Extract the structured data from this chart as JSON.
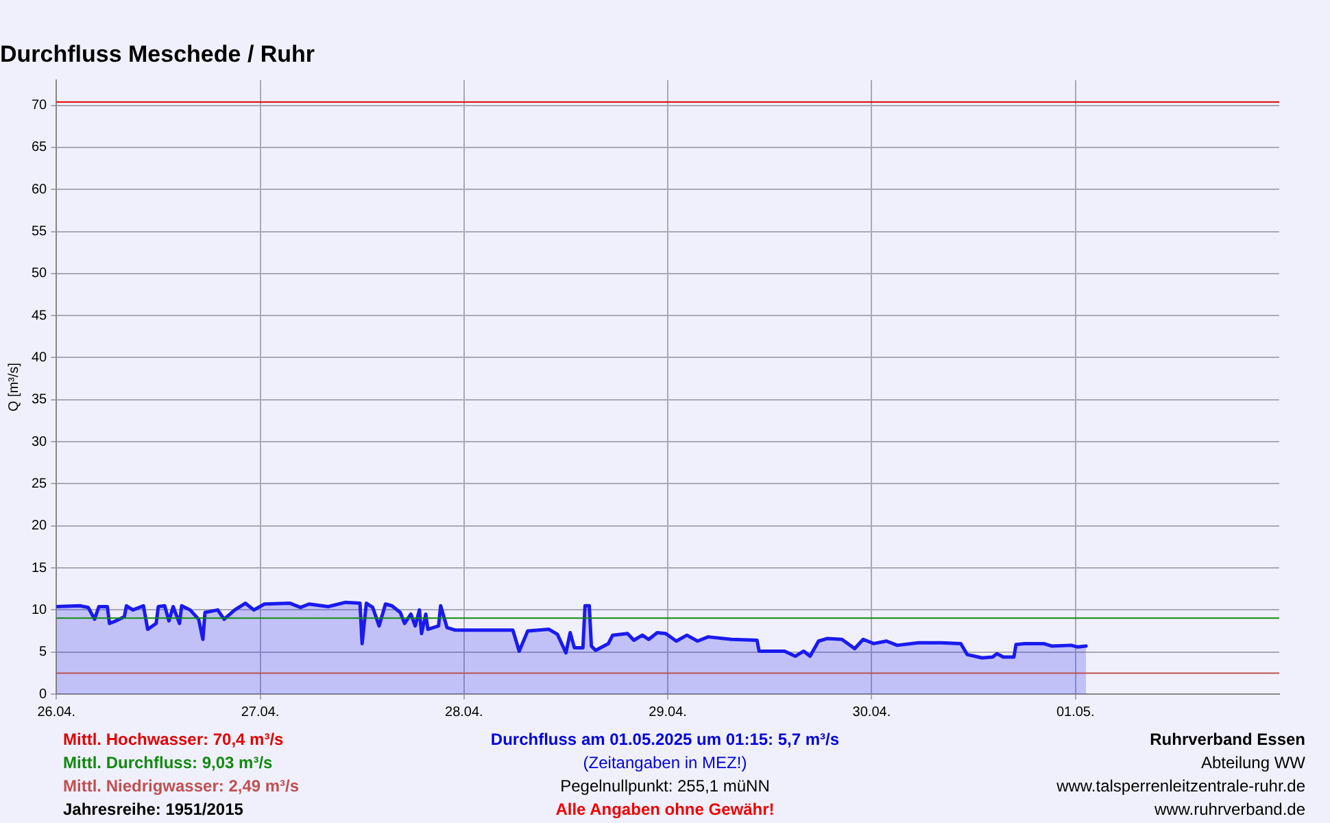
{
  "chart_data": {
    "type": "area",
    "title": "Durchfluss Meschede / Ruhr",
    "ylabel": "Q [m³/s]",
    "x": [
      "2025-04-26T00:00",
      "2025-04-26T02:45",
      "2025-04-26T03:45",
      "2025-04-26T04:30",
      "2025-04-26T05:00",
      "2025-04-26T06:00",
      "2025-04-26T06:15",
      "2025-04-26T07:00",
      "2025-04-26T08:00",
      "2025-04-26T08:15",
      "2025-04-26T09:00",
      "2025-04-26T10:15",
      "2025-04-26T10:45",
      "2025-04-26T11:45",
      "2025-04-26T12:00",
      "2025-04-26T12:45",
      "2025-04-26T13:15",
      "2025-04-26T13:45",
      "2025-04-26T14:30",
      "2025-04-26T14:45",
      "2025-04-26T15:45",
      "2025-04-26T16:45",
      "2025-04-26T17:15",
      "2025-04-26T17:30",
      "2025-04-26T19:00",
      "2025-04-26T19:45",
      "2025-04-26T21:00",
      "2025-04-26T22:15",
      "2025-04-26T23:15",
      "2025-04-27T00:30",
      "2025-04-27T03:30",
      "2025-04-27T04:45",
      "2025-04-27T05:45",
      "2025-04-27T08:00",
      "2025-04-27T10:00",
      "2025-04-27T11:45",
      "2025-04-27T12:00",
      "2025-04-27T12:30",
      "2025-04-27T13:15",
      "2025-04-27T14:00",
      "2025-04-27T14:45",
      "2025-04-27T15:30",
      "2025-04-27T16:30",
      "2025-04-27T17:00",
      "2025-04-27T17:45",
      "2025-04-27T18:15",
      "2025-04-27T18:45",
      "2025-04-27T19:00",
      "2025-04-27T19:30",
      "2025-04-27T19:45",
      "2025-04-27T21:00",
      "2025-04-27T21:15",
      "2025-04-27T22:00",
      "2025-04-27T23:00",
      "2025-04-28T00:00",
      "2025-04-28T03:45",
      "2025-04-28T05:45",
      "2025-04-28T06:30",
      "2025-04-28T07:30",
      "2025-04-28T10:00",
      "2025-04-28T11:00",
      "2025-04-28T12:00",
      "2025-04-28T12:30",
      "2025-04-28T13:00",
      "2025-04-28T14:00",
      "2025-04-28T14:15",
      "2025-04-28T14:45",
      "2025-04-28T15:00",
      "2025-04-28T15:30",
      "2025-04-28T17:00",
      "2025-04-28T17:30",
      "2025-04-28T19:15",
      "2025-04-28T20:00",
      "2025-04-28T21:00",
      "2025-04-28T21:45",
      "2025-04-28T22:45",
      "2025-04-28T23:45",
      "2025-04-29T01:00",
      "2025-04-29T02:15",
      "2025-04-29T03:30",
      "2025-04-29T04:45",
      "2025-04-29T07:30",
      "2025-04-29T10:30",
      "2025-04-29T10:45",
      "2025-04-29T13:45",
      "2025-04-29T15:00",
      "2025-04-29T16:00",
      "2025-04-29T16:45",
      "2025-04-29T17:45",
      "2025-04-29T18:45",
      "2025-04-29T20:30",
      "2025-04-29T22:00",
      "2025-04-29T23:00",
      "2025-04-30T00:15",
      "2025-04-30T01:45",
      "2025-04-30T03:00",
      "2025-04-30T05:30",
      "2025-04-30T08:15",
      "2025-04-30T10:30",
      "2025-04-30T11:15",
      "2025-04-30T13:00",
      "2025-04-30T14:15",
      "2025-04-30T14:45",
      "2025-04-30T15:30",
      "2025-04-30T16:45",
      "2025-04-30T17:00",
      "2025-04-30T18:00",
      "2025-04-30T20:15",
      "2025-04-30T21:15",
      "2025-04-30T23:30",
      "2025-05-01T00:15",
      "2025-05-01T01:15"
    ],
    "series": [
      {
        "color": "#1a1aee",
        "values": [
          10.4,
          10.5,
          10.3,
          8.9,
          10.4,
          10.4,
          8.4,
          8.7,
          9.2,
          10.5,
          10.0,
          10.5,
          7.7,
          8.4,
          10.4,
          10.5,
          8.7,
          10.4,
          8.4,
          10.5,
          10.0,
          8.9,
          6.5,
          9.7,
          10.0,
          8.9,
          10.0,
          10.8,
          10.0,
          10.7,
          10.8,
          10.3,
          10.7,
          10.4,
          10.9,
          10.8,
          6.0,
          10.8,
          10.3,
          8.1,
          10.7,
          10.5,
          9.7,
          8.4,
          9.5,
          8.1,
          10.0,
          7.2,
          9.5,
          7.7,
          8.1,
          10.5,
          7.9,
          7.6,
          7.6,
          7.6,
          7.6,
          5.1,
          7.5,
          7.7,
          7.1,
          4.9,
          7.3,
          5.5,
          5.5,
          10.5,
          10.5,
          5.7,
          5.2,
          6.0,
          7.0,
          7.2,
          6.4,
          7.0,
          6.5,
          7.3,
          7.2,
          6.3,
          7.0,
          6.3,
          6.8,
          6.5,
          6.4,
          5.1,
          5.1,
          4.5,
          5.1,
          4.5,
          6.3,
          6.6,
          6.5,
          5.4,
          6.5,
          6.0,
          6.3,
          5.8,
          6.1,
          6.1,
          6.0,
          4.7,
          4.3,
          4.4,
          4.8,
          4.4,
          4.4,
          5.9,
          6.0,
          6.0,
          5.7,
          5.8,
          5.6,
          5.7
        ]
      }
    ],
    "xlim": [
      "2025-04-26T00:00",
      "2025-05-02T00:00"
    ],
    "xticks": [
      {
        "value": "2025-04-26T00:00",
        "label": "26.04."
      },
      {
        "value": "2025-04-27T00:00",
        "label": "27.04."
      },
      {
        "value": "2025-04-28T00:00",
        "label": "28.04."
      },
      {
        "value": "2025-04-29T00:00",
        "label": "29.04."
      },
      {
        "value": "2025-04-30T00:00",
        "label": "30.04."
      },
      {
        "value": "2025-05-01T00:00",
        "label": "01.05."
      }
    ],
    "ylim": [
      0,
      73
    ],
    "yticks": [
      0,
      5,
      10,
      15,
      20,
      25,
      30,
      35,
      40,
      45,
      50,
      55,
      60,
      65,
      70
    ],
    "grid": true,
    "legend": false,
    "ref_lines": [
      {
        "axis": "y",
        "value": 70.4,
        "label": "Mittl. Hochwasser: 70,4 m³/s",
        "color": "#e00000"
      },
      {
        "axis": "y",
        "value": 9.03,
        "label": "Mittl. Durchfluss: 9,03 m³/s",
        "color": "#108a10"
      },
      {
        "axis": "y",
        "value": 2.49,
        "label": "Mittl. Niedrigwasser: 2,49 m³/s",
        "color": "#c05050"
      }
    ],
    "annotations": [
      "Jahresreihe: 1951/2015",
      "Durchfluss am 01.05.2025 um 01:15: 5,7 m³/s",
      "(Zeitangaben in MEZ!)",
      "Pegelnullpunkt: 255,1 müNN",
      "Alle Angaben ohne Gewähr!",
      "Ruhrverband Essen",
      "Abteilung WW",
      "www.talsperrenleitzentrale-ruhr.de",
      "www.ruhrverband.de"
    ]
  }
}
